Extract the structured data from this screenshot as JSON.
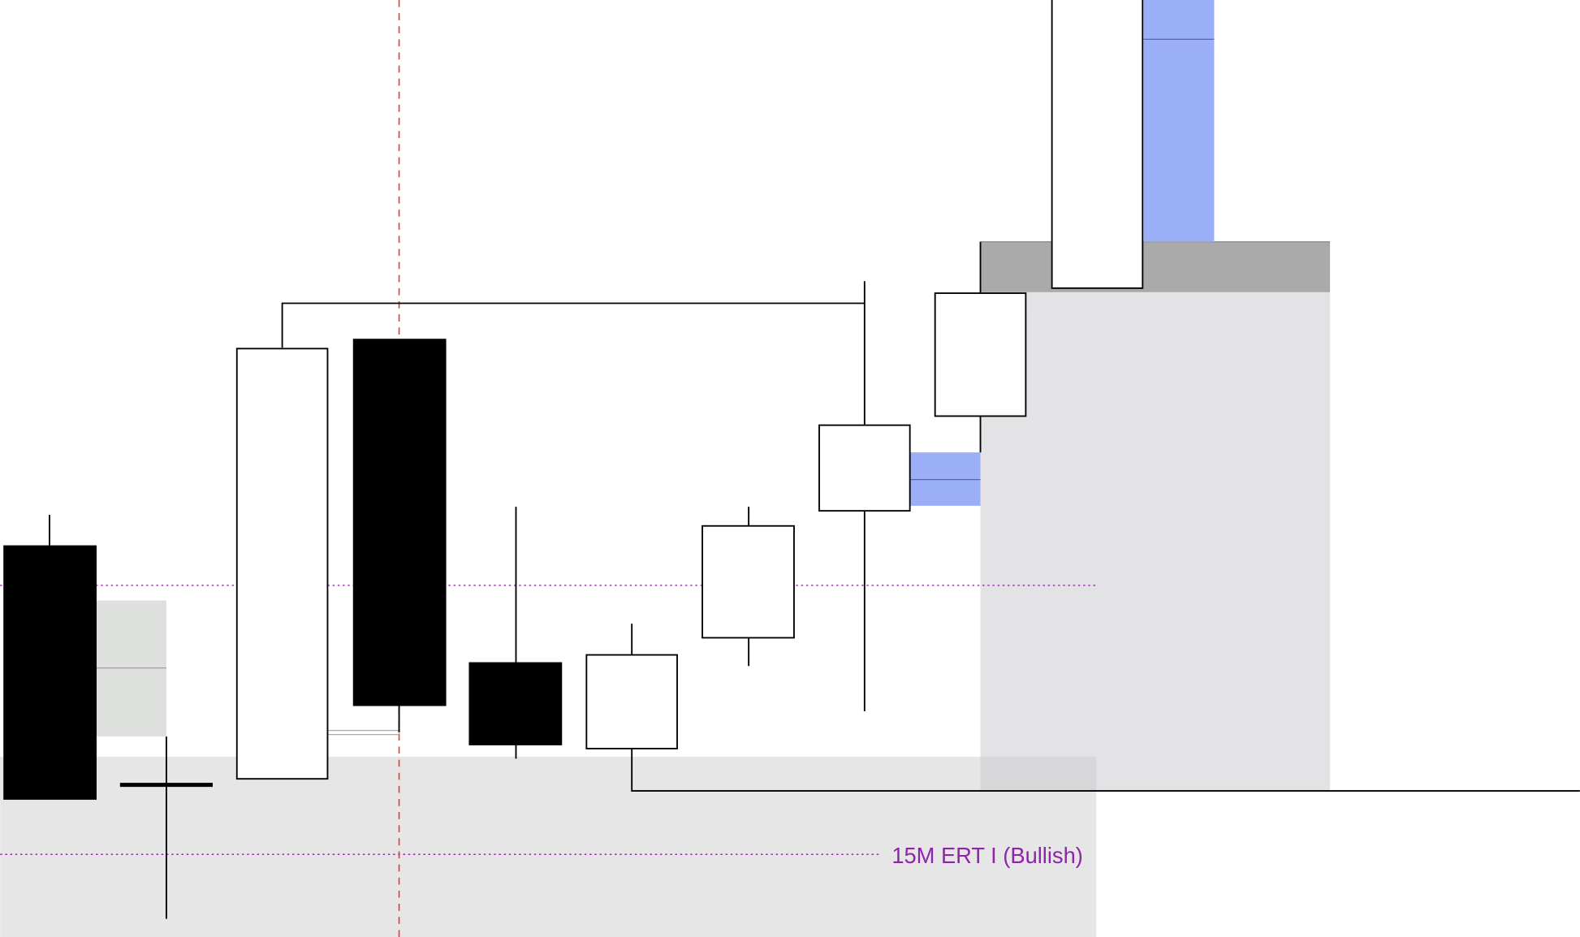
{
  "annotation": "15M ERT I (Bullish)"
}
